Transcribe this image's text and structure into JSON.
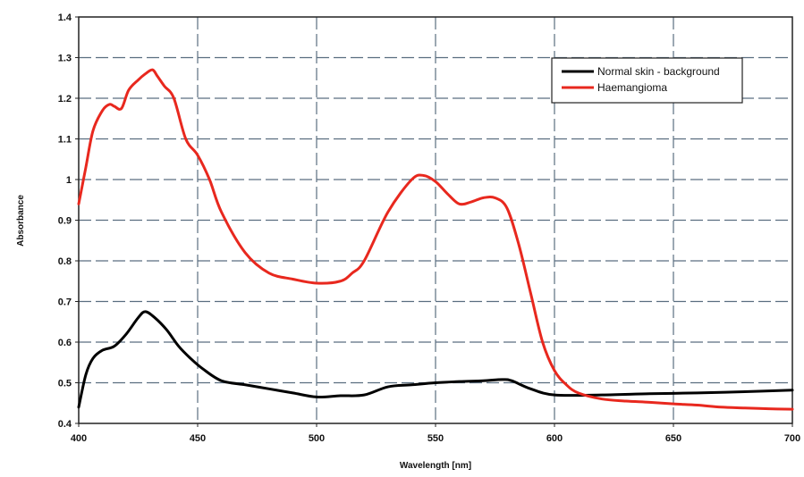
{
  "chart_data": {
    "type": "line",
    "xlabel": "Wavelength [nm]",
    "ylabel": "Absorbance",
    "xlim": [
      400,
      700
    ],
    "ylim": [
      0.4,
      1.4
    ],
    "x_ticks": [
      400,
      450,
      500,
      550,
      600,
      650,
      700
    ],
    "y_ticks": [
      0.4,
      0.5,
      0.6,
      0.7,
      0.8,
      0.9,
      1,
      1.1,
      1.2,
      1.3,
      1.4
    ],
    "grid": true,
    "legend_position": "top-right",
    "series": [
      {
        "name": "Normal skin - background",
        "color": "#000000",
        "x": [
          400,
          403,
          406,
          410,
          415,
          420,
          425,
          428,
          432,
          437,
          442,
          447,
          452,
          460,
          470,
          480,
          490,
          500,
          510,
          520,
          530,
          540,
          550,
          560,
          570,
          578,
          582,
          590,
          600,
          620,
          640,
          660,
          680,
          700
        ],
        "y": [
          0.44,
          0.52,
          0.56,
          0.58,
          0.59,
          0.62,
          0.66,
          0.675,
          0.66,
          0.63,
          0.59,
          0.56,
          0.535,
          0.505,
          0.495,
          0.485,
          0.475,
          0.465,
          0.468,
          0.47,
          0.49,
          0.495,
          0.5,
          0.503,
          0.505,
          0.508,
          0.505,
          0.485,
          0.47,
          0.47,
          0.473,
          0.475,
          0.478,
          0.482
        ]
      },
      {
        "name": "Haemangioma",
        "color": "#e8281e",
        "x": [
          400,
          403,
          406,
          410,
          413,
          415,
          418,
          421,
          425,
          428,
          431,
          433,
          436,
          440,
          445,
          450,
          455,
          460,
          470,
          480,
          490,
          500,
          510,
          515,
          520,
          530,
          540,
          545,
          550,
          555,
          560,
          565,
          570,
          575,
          580,
          585,
          590,
          595,
          600,
          605,
          610,
          620,
          630,
          640,
          650,
          660,
          670,
          680,
          690,
          700
        ],
        "y": [
          0.94,
          1.03,
          1.12,
          1.17,
          1.185,
          1.18,
          1.175,
          1.22,
          1.245,
          1.26,
          1.27,
          1.255,
          1.23,
          1.2,
          1.1,
          1.06,
          1.0,
          0.92,
          0.82,
          0.77,
          0.755,
          0.745,
          0.75,
          0.77,
          0.8,
          0.92,
          1.0,
          1.01,
          0.995,
          0.965,
          0.94,
          0.945,
          0.955,
          0.955,
          0.93,
          0.84,
          0.72,
          0.6,
          0.53,
          0.495,
          0.475,
          0.46,
          0.455,
          0.452,
          0.448,
          0.445,
          0.44,
          0.438,
          0.436,
          0.435
        ]
      }
    ]
  }
}
